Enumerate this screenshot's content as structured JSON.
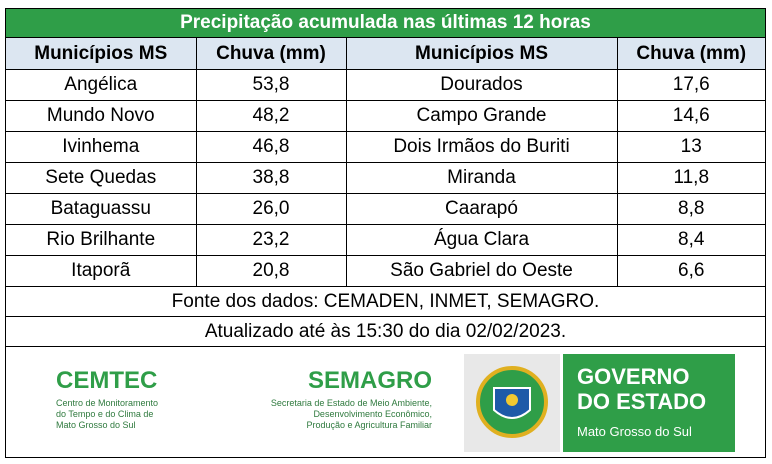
{
  "header": {
    "title": "Precipitação acumulada nas últimas 12 horas"
  },
  "table": {
    "columns": [
      "Municípios MS",
      "Chuva (mm)",
      "Municípios MS",
      "Chuva (mm)"
    ],
    "rows": [
      [
        "Angélica",
        "53,8",
        "Dourados",
        "17,6"
      ],
      [
        "Mundo Novo",
        "48,2",
        "Campo Grande",
        "14,6"
      ],
      [
        "Ivinhema",
        "46,8",
        "Dois Irmãos do Buriti",
        "13"
      ],
      [
        "Sete Quedas",
        "38,8",
        "Miranda",
        "11,8"
      ],
      [
        "Bataguassu",
        "26,0",
        "Caarapó",
        "8,8"
      ],
      [
        "Rio Brilhante",
        "23,2",
        "Água Clara",
        "8,4"
      ],
      [
        "Itaporã",
        "20,8",
        "São Gabriel do Oeste",
        "6,6"
      ]
    ]
  },
  "footer": {
    "source": "Fonte dos dados: CEMADEN, INMET, SEMAGRO.",
    "updated": "Atualizado até às 15:30 do dia 02/02/2023."
  },
  "logos": {
    "cemtec": {
      "name": "CEMTEC",
      "lines": [
        "Centro de Monitoramento",
        "do Tempo e do Clima de",
        "Mato Grosso do Sul"
      ]
    },
    "semagro": {
      "name": "SEMAGRO",
      "lines": [
        "Secretaria de Estado de Meio Ambiente,",
        "Desenvolvimento Econômico,",
        "Produção e Agricultura Familiar"
      ]
    },
    "governo": {
      "lines": [
        "GOVERNO",
        "DO ESTADO"
      ],
      "state": "Mato Grosso do Sul"
    }
  }
}
